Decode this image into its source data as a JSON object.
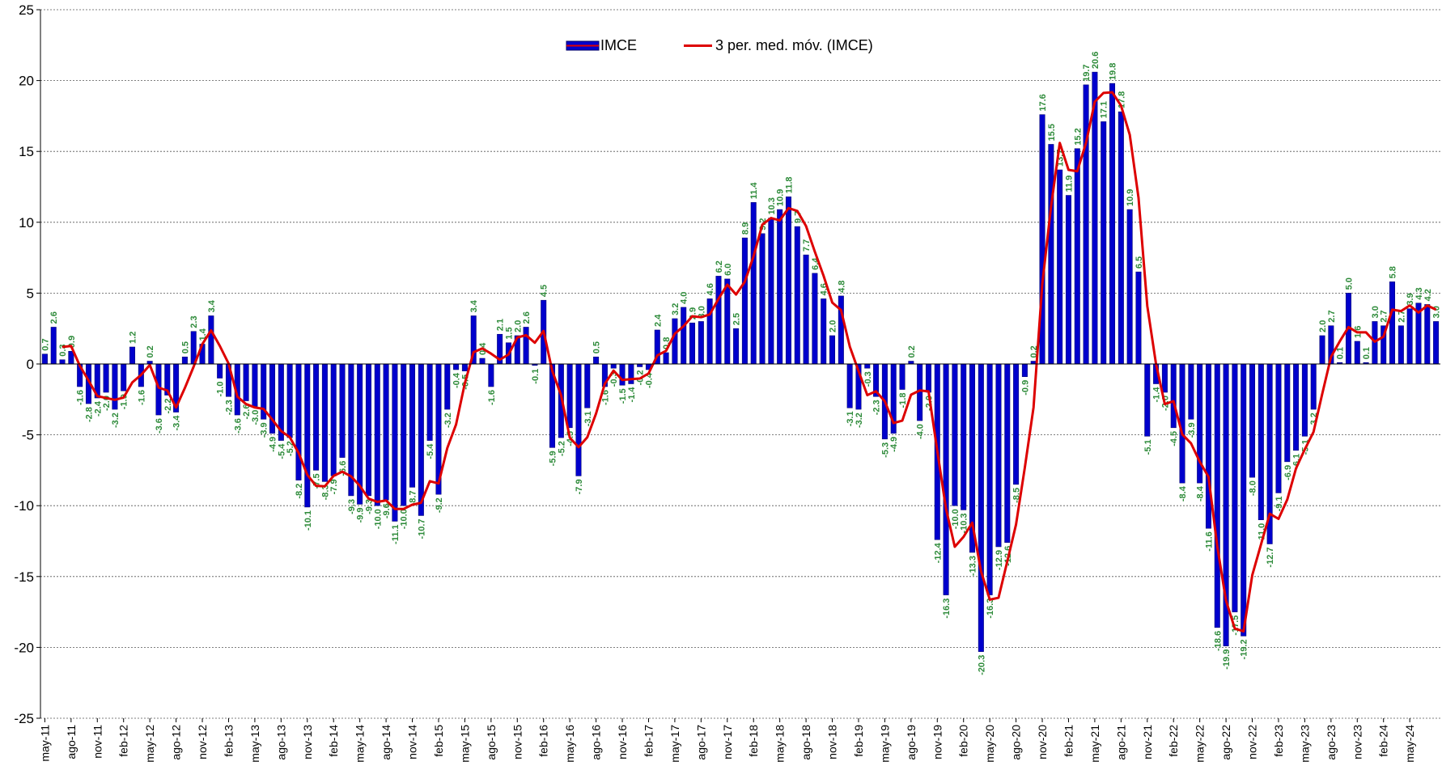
{
  "chart_data": {
    "type": "bar",
    "categories": [
      "may-11",
      null,
      null,
      "ago-11",
      null,
      null,
      "nov-11",
      null,
      null,
      "feb-12",
      null,
      null,
      "may-12",
      null,
      null,
      "ago-12",
      null,
      null,
      "nov-12",
      null,
      null,
      "feb-13",
      null,
      null,
      "may-13",
      null,
      null,
      "ago-13",
      null,
      null,
      "nov-13",
      null,
      null,
      "feb-14",
      null,
      null,
      "may-14",
      null,
      null,
      "ago-14",
      null,
      null,
      "nov-14",
      null,
      null,
      "feb-15",
      null,
      null,
      "may-15",
      null,
      null,
      "ago-15",
      null,
      null,
      "nov-15",
      null,
      null,
      "feb-16",
      null,
      null,
      "may-16",
      null,
      null,
      "ago-16",
      null,
      null,
      "nov-16",
      null,
      null,
      "feb-17",
      null,
      null,
      "may-17",
      null,
      null,
      "ago-17",
      null,
      null,
      "nov-17",
      null,
      null,
      "feb-18",
      null,
      null,
      "may-18",
      null,
      null,
      "ago-18",
      null,
      null,
      "nov-18",
      null,
      null,
      "feb-19",
      null,
      null,
      "may-19",
      null,
      null,
      "ago-19",
      null,
      null,
      "nov-19",
      null,
      null,
      "feb-20",
      null,
      null,
      "may-20",
      null,
      null,
      "ago-20",
      null,
      null,
      "nov-20",
      null,
      null,
      "feb-21",
      null,
      null,
      "may-21",
      null,
      null,
      "ago-21",
      null,
      null,
      "nov-21",
      null,
      null,
      "feb-22",
      null,
      null,
      "may-22",
      null,
      null,
      "ago-22",
      null,
      null,
      "nov-22",
      null,
      null,
      "feb-23",
      null,
      null,
      "may-23",
      null,
      null,
      "ago-23",
      null,
      null,
      "nov-23",
      null,
      null,
      "feb-24",
      null,
      null,
      "may-24",
      null,
      null,
      null
    ],
    "series": [
      {
        "name": "IMCE",
        "type": "bar",
        "color": "#0000cc",
        "label_color": "#2e8b3a",
        "values": [
          0.7,
          2.6,
          0.3,
          0.9,
          -1.6,
          -2.8,
          -2.4,
          -2.0,
          -3.2,
          -1.9,
          1.2,
          -1.6,
          0.2,
          -3.6,
          -2.2,
          -3.4,
          0.5,
          2.3,
          1.4,
          3.4,
          -1.0,
          -2.3,
          -3.6,
          -2.6,
          -3.0,
          -3.9,
          -4.9,
          -5.4,
          -5.2,
          -8.2,
          -10.1,
          -7.5,
          -8.3,
          -7.9,
          -6.6,
          -9.3,
          -9.9,
          -9.3,
          -10.0,
          -9.6,
          -11.1,
          -10.0,
          -8.7,
          -10.7,
          -5.4,
          -9.2,
          -3.2,
          -0.4,
          -0.5,
          3.4,
          0.4,
          -1.6,
          2.1,
          1.5,
          2.0,
          2.6,
          -0.1,
          4.5,
          -5.9,
          -5.2,
          -4.5,
          -7.9,
          -3.1,
          0.5,
          -1.6,
          -0.3,
          -1.5,
          -1.4,
          -0.2,
          -0.4,
          2.4,
          0.8,
          3.2,
          4.0,
          2.9,
          3.0,
          4.6,
          6.2,
          6.0,
          2.5,
          8.9,
          11.4,
          9.2,
          10.3,
          10.9,
          11.8,
          9.7,
          7.7,
          6.4,
          4.6,
          2.0,
          4.8,
          -3.1,
          -3.2,
          -0.3,
          -2.3,
          -5.3,
          -4.9,
          -1.8,
          0.2,
          -4.0,
          -2.0,
          -12.4,
          -16.3,
          -10.0,
          -10.3,
          -13.3,
          -20.3,
          -16.3,
          -12.9,
          -12.6,
          -8.5,
          -0.9,
          0.2,
          17.6,
          15.5,
          13.7,
          11.9,
          15.2,
          19.7,
          20.6,
          17.1,
          19.8,
          17.8,
          10.9,
          6.5,
          -5.1,
          -1.4,
          -2.0,
          -4.5,
          -8.4,
          -3.9,
          -8.4,
          -11.6,
          -18.6,
          -19.9,
          -17.5,
          -19.2,
          -8.0,
          -11.0,
          -12.7,
          -9.1,
          -6.9,
          -6.1,
          -5.1,
          -3.2,
          2.0,
          2.7,
          0.1,
          5.0,
          1.6,
          0.1,
          3.0,
          2.7,
          5.8,
          2.7,
          3.9,
          4.3,
          4.2,
          3.0
        ],
        "value_labels": [
          "0.7",
          "2.6",
          "0.3",
          "0.9",
          "-1.6",
          "-2.8",
          "-2.4",
          "-2.0",
          "-3.2",
          "-1.9",
          "1.2",
          "-1.6",
          "0.2",
          "-3.6",
          "-2.2",
          "-3.4",
          "0.5",
          "2.3",
          "1.4",
          "3.4",
          "-1.0",
          "-2.3",
          "-3.6",
          "-2.6",
          "-3.0",
          "-3.9",
          "-4.9",
          "-5.4",
          "-5.2",
          "-8.2",
          "-10.1",
          "-7.5",
          "-8.3",
          "-7.9",
          "-6.6",
          "-9.3",
          "-9.9",
          "-9.3",
          "-10.0",
          "-9.6",
          "-11.1",
          "-10.0",
          "-8.7",
          "-10.7",
          "-5.4",
          "-9.2",
          "-3.2",
          "-0.4",
          "-0.5",
          "3.4",
          "0.4",
          "-1.6",
          "2.1",
          "1.5",
          "2.0",
          "2.6",
          "-0.1",
          "4.5",
          "-5.9",
          "-5.2",
          "-4.5",
          "-7.9",
          "-3.1",
          "0.5",
          "-1.6",
          "-0.3",
          "-1.5",
          "-1.4",
          "-0.2",
          "-0.4",
          "2.4",
          "0.8",
          "3.2",
          "4.0",
          "2.9",
          "3.0",
          "4.6",
          "6.2",
          "6.0",
          "2.5",
          "8.9",
          "11.4",
          "9.2",
          "10.3",
          "10.9",
          "11.8",
          "9.7",
          "7.7",
          "6.4",
          "4.6",
          "2.0",
          "4.8",
          "-3.1",
          "-3.2",
          "-0.3",
          "-2.3",
          "-5.3",
          "-4.9",
          "-1.8",
          "0.2",
          "-4.0",
          "-2.0",
          "-12.4",
          "-16.3",
          "-10.0",
          "-10.3",
          "-13.3",
          "-20.3",
          "-16.3",
          "-12.9",
          "-12.6",
          "-8.5",
          "-0.9",
          "0.2",
          "17.6",
          "15.5",
          "13.7",
          "11.9",
          "15.2",
          "19.7",
          "20.6",
          "17.1",
          "19.8",
          "17.8",
          "10.9",
          "6.5",
          "-5.1",
          "-1.4",
          "-2.0",
          "-4.5",
          "-8.4",
          "-3.9",
          "-8.4",
          "-11.6",
          "-18.6",
          "-19.9",
          "-17.5",
          "-19.2",
          "-8.0",
          "-11.0",
          "-12.7",
          "-9.1",
          "-6.9",
          "-6.1",
          "-5.1",
          "-3.2",
          "2.0",
          "2.7",
          "0.1",
          "5.0",
          "1.6",
          "0.1",
          "3.0",
          "2.7",
          "5.8",
          "2.7",
          "3.9",
          "4.3",
          "4.2",
          "3.0"
        ]
      },
      {
        "name": "3 per. med. móv. (IMCE)",
        "type": "line",
        "color": "#dd0000",
        "values": [
          null,
          null,
          1.2,
          1.27,
          -0.13,
          -1.17,
          -2.27,
          -2.4,
          -2.53,
          -2.37,
          -1.3,
          -0.77,
          -0.07,
          -1.67,
          -1.87,
          -3.07,
          -1.7,
          -0.2,
          1.4,
          2.37,
          1.27,
          0.03,
          -2.3,
          -2.83,
          -3.07,
          -3.17,
          -3.93,
          -4.73,
          -5.17,
          -6.27,
          -7.83,
          -8.6,
          -8.63,
          -7.9,
          -7.6,
          -7.93,
          -8.6,
          -9.5,
          -9.73,
          -9.63,
          -10.23,
          -10.23,
          -9.93,
          -9.8,
          -8.27,
          -8.43,
          -5.93,
          -4.27,
          -1.37,
          0.83,
          1.1,
          0.73,
          0.3,
          0.67,
          1.87,
          2.03,
          1.5,
          2.33,
          -0.5,
          -2.2,
          -5.2,
          -5.87,
          -5.17,
          -3.5,
          -1.4,
          -0.47,
          -1.13,
          -1.07,
          -1.03,
          -0.67,
          0.6,
          0.93,
          2.13,
          2.67,
          3.37,
          3.3,
          3.5,
          4.6,
          5.6,
          4.9,
          5.8,
          7.6,
          9.83,
          10.3,
          10.13,
          11.0,
          10.8,
          9.73,
          7.93,
          6.23,
          4.33,
          3.8,
          1.23,
          -0.5,
          -2.2,
          -1.93,
          -2.63,
          -4.17,
          -4.0,
          -2.17,
          -1.87,
          -1.93,
          -6.13,
          -10.23,
          -12.9,
          -12.2,
          -11.2,
          -14.63,
          -16.63,
          -16.5,
          -13.93,
          -11.33,
          -7.33,
          -3.07,
          5.63,
          11.1,
          15.6,
          13.7,
          13.6,
          15.6,
          18.5,
          19.13,
          19.17,
          18.23,
          16.17,
          11.73,
          4.1,
          0.0,
          -2.83,
          -2.63,
          -4.97,
          -5.6,
          -6.9,
          -7.97,
          -12.87,
          -16.7,
          -18.67,
          -18.87,
          -14.9,
          -12.73,
          -10.57,
          -10.93,
          -9.57,
          -7.37,
          -6.03,
          -4.8,
          -2.1,
          0.5,
          1.6,
          2.6,
          2.23,
          2.23,
          1.57,
          1.93,
          3.83,
          3.73,
          4.13,
          3.63,
          4.13,
          3.83
        ]
      }
    ],
    "ylim": [
      -25,
      25
    ],
    "yticks": [
      -25,
      -20,
      -15,
      -10,
      -5,
      0,
      5,
      10,
      15,
      20,
      25
    ],
    "grid": true,
    "legend": "top"
  }
}
